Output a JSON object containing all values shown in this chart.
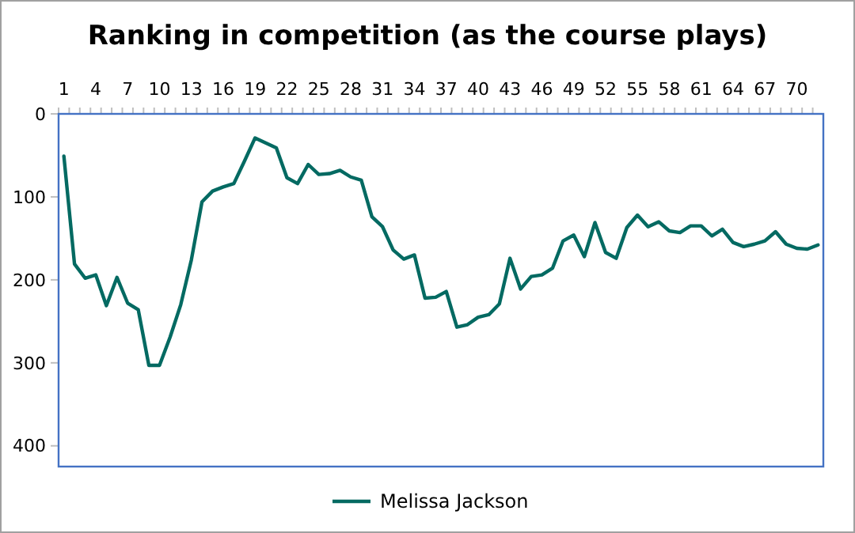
{
  "chart_data": {
    "type": "line",
    "title": "Ranking in competition (as the course plays)",
    "categories": [
      "1",
      null,
      null,
      "4",
      null,
      null,
      "7",
      null,
      null,
      "10",
      null,
      null,
      "13",
      null,
      null,
      "16",
      null,
      null,
      "19",
      null,
      null,
      "22",
      null,
      null,
      "25",
      null,
      null,
      "28",
      null,
      null,
      "31",
      null,
      null,
      "34",
      null,
      null,
      "37",
      null,
      null,
      "40",
      null,
      null,
      "43",
      null,
      null,
      "46",
      null,
      null,
      "49",
      null,
      null,
      "52",
      null,
      null,
      "55",
      null,
      null,
      "58",
      null,
      null,
      "61",
      null,
      null,
      "64",
      null,
      null,
      "67",
      null,
      null,
      "70",
      null,
      null
    ],
    "series": [
      {
        "name": "Melissa Jackson",
        "color": "#046a62",
        "values": [
          51,
          181,
          198,
          194,
          231,
          197,
          228,
          236,
          303,
          303,
          269,
          230,
          176,
          106,
          93,
          88,
          84,
          57,
          29,
          35,
          41,
          77,
          84,
          61,
          73,
          72,
          68,
          76,
          80,
          124,
          136,
          164,
          175,
          170,
          222,
          221,
          214,
          257,
          254,
          245,
          242,
          229,
          174,
          211,
          196,
          194,
          186,
          153,
          146,
          172,
          131,
          167,
          174,
          137,
          122,
          136,
          130,
          141,
          143,
          135,
          135,
          147,
          139,
          155,
          160,
          157,
          153,
          142,
          157,
          162,
          163,
          158
        ]
      }
    ],
    "ylim": [
      425,
      0
    ],
    "yticks": [
      0,
      100,
      200,
      300,
      400
    ],
    "grid": false,
    "legend": "bottom",
    "marker": "none",
    "line_style": "solid"
  }
}
